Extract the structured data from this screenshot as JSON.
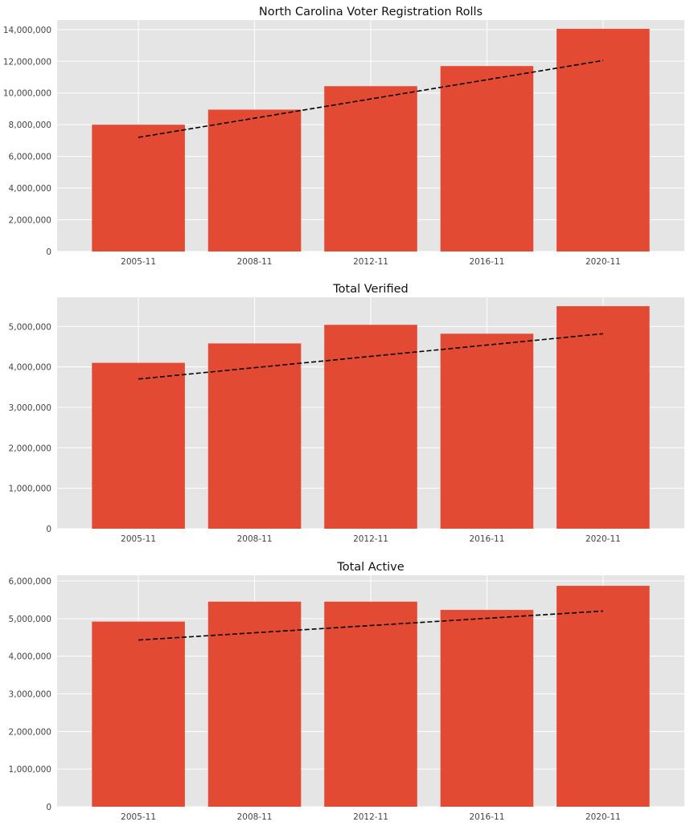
{
  "chart_data": [
    {
      "type": "bar",
      "title": "North Carolina Voter Registration Rolls",
      "categories": [
        "2005-11",
        "2008-11",
        "2012-11",
        "2016-11",
        "2020-11"
      ],
      "values": [
        8000000,
        8950000,
        10430000,
        11700000,
        14050000
      ],
      "trendline": [
        7200000,
        12050000
      ],
      "ylim": [
        0,
        14600000
      ],
      "yticks": [
        0,
        2000000,
        4000000,
        6000000,
        8000000,
        10000000,
        12000000,
        14000000
      ],
      "ytick_labels": [
        "0",
        "2,000,000",
        "4,000,000",
        "6,000,000",
        "8,000,000",
        "10,000,000",
        "12,000,000",
        "14,000,000"
      ],
      "grid": true,
      "colors": {
        "bar": "#e24a33",
        "trend": "#000000",
        "background": "#e5e5e5",
        "grid": "#ffffff"
      }
    },
    {
      "type": "bar",
      "title": "Total Verified",
      "categories": [
        "2005-11",
        "2008-11",
        "2012-11",
        "2016-11",
        "2020-11"
      ],
      "values": [
        4100000,
        4580000,
        5040000,
        4820000,
        5500000
      ],
      "trendline": [
        3700000,
        4820000
      ],
      "ylim": [
        0,
        5720000
      ],
      "yticks": [
        0,
        1000000,
        2000000,
        3000000,
        4000000,
        5000000
      ],
      "ytick_labels": [
        "0",
        "1,000,000",
        "2,000,000",
        "3,000,000",
        "4,000,000",
        "5,000,000"
      ],
      "grid": true,
      "colors": {
        "bar": "#e24a33",
        "trend": "#000000",
        "background": "#e5e5e5",
        "grid": "#ffffff"
      }
    },
    {
      "type": "bar",
      "title": "Total Active",
      "categories": [
        "2005-11",
        "2008-11",
        "2012-11",
        "2016-11",
        "2020-11"
      ],
      "values": [
        4920000,
        5450000,
        5450000,
        5230000,
        5870000
      ],
      "trendline": [
        4430000,
        5200000
      ],
      "ylim": [
        0,
        6150000
      ],
      "yticks": [
        0,
        1000000,
        2000000,
        3000000,
        4000000,
        5000000,
        6000000
      ],
      "ytick_labels": [
        "0",
        "1,000,000",
        "2,000,000",
        "3,000,000",
        "4,000,000",
        "5,000,000",
        "6,000,000"
      ],
      "grid": true,
      "colors": {
        "bar": "#e24a33",
        "trend": "#000000",
        "background": "#e5e5e5",
        "grid": "#ffffff"
      }
    }
  ]
}
